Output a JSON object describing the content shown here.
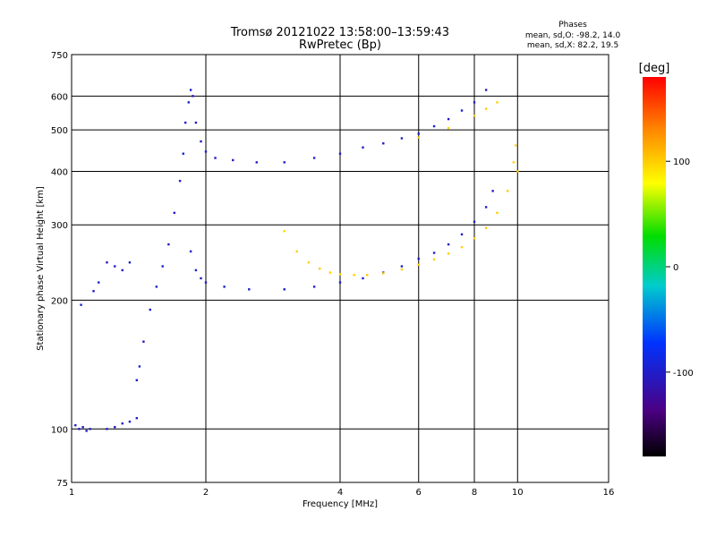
{
  "chart_data": {
    "type": "scatter",
    "title": "Tromsø 20121022 13:58:00–13:59:43",
    "subtitle": "RwPretec (Bp)",
    "xlabel": "Frequency [MHz]",
    "ylabel": "Stationary phase Virtual Height [km]",
    "x_scale": "log",
    "y_scale": "log",
    "xlim": [
      1,
      16
    ],
    "ylim": [
      75,
      750
    ],
    "x_ticks": [
      1,
      2,
      4,
      6,
      8,
      10,
      16
    ],
    "y_ticks": [
      75,
      100,
      200,
      300,
      400,
      500,
      600,
      750
    ],
    "grid": true,
    "stats": {
      "heading": "Phases",
      "line_o": "mean, sd,O: -98.2, 14.0",
      "line_x": "mean, sd,X: 82.2, 19.5"
    },
    "colorbar": {
      "label": "[deg]",
      "min": -180,
      "max": 180,
      "ticks": [
        100,
        0,
        -100
      ]
    },
    "series": [
      {
        "values": [
          [
            1.02,
            102,
            -100
          ],
          [
            1.04,
            100,
            -105
          ],
          [
            1.06,
            101,
            -98
          ],
          [
            1.08,
            99,
            -102
          ],
          [
            1.1,
            100,
            -100
          ],
          [
            1.2,
            100,
            -97
          ],
          [
            1.25,
            101,
            -103
          ],
          [
            1.3,
            103,
            -100
          ],
          [
            1.35,
            104,
            -98
          ],
          [
            1.4,
            106,
            -100
          ],
          [
            1.05,
            195,
            -95
          ],
          [
            1.12,
            210,
            -100
          ],
          [
            1.15,
            220,
            -98
          ],
          [
            1.2,
            245,
            -102
          ],
          [
            1.25,
            240,
            -100
          ],
          [
            1.3,
            235,
            -99
          ],
          [
            1.35,
            245,
            -101
          ],
          [
            1.4,
            130,
            -100
          ],
          [
            1.42,
            140,
            -98
          ],
          [
            1.45,
            160,
            -102
          ],
          [
            1.5,
            190,
            -100
          ],
          [
            1.55,
            215,
            -101
          ],
          [
            1.6,
            240,
            -97
          ],
          [
            1.65,
            270,
            -100
          ],
          [
            1.7,
            320,
            -103
          ],
          [
            1.75,
            380,
            -99
          ],
          [
            1.78,
            440,
            -100
          ],
          [
            1.8,
            520,
            -101
          ],
          [
            1.83,
            580,
            -98
          ],
          [
            1.85,
            620,
            -100
          ],
          [
            1.87,
            600,
            -102
          ],
          [
            1.9,
            520,
            -100
          ],
          [
            1.95,
            470,
            -100
          ],
          [
            2.0,
            445,
            -98
          ],
          [
            2.1,
            430,
            -102
          ],
          [
            2.3,
            425,
            -100
          ],
          [
            2.6,
            420,
            -101
          ],
          [
            3.0,
            420,
            -100
          ],
          [
            3.5,
            430,
            -99
          ],
          [
            4.0,
            440,
            -100
          ],
          [
            4.5,
            455,
            -101
          ],
          [
            5.0,
            465,
            -99
          ],
          [
            5.5,
            478,
            -100
          ],
          [
            6.0,
            490,
            -98
          ],
          [
            6.5,
            510,
            -100
          ],
          [
            7.0,
            530,
            -102
          ],
          [
            7.5,
            555,
            -100
          ],
          [
            8.0,
            580,
            -98
          ],
          [
            8.5,
            620,
            -100
          ],
          [
            1.85,
            260,
            -100
          ],
          [
            1.9,
            235,
            -98
          ],
          [
            1.95,
            225,
            -101
          ],
          [
            2.0,
            220,
            -100
          ],
          [
            2.2,
            215,
            -99
          ],
          [
            2.5,
            212,
            -100
          ],
          [
            3.0,
            212,
            -101
          ],
          [
            3.5,
            215,
            -100
          ],
          [
            4.0,
            220,
            -98
          ],
          [
            4.5,
            225,
            -100
          ],
          [
            5.0,
            232,
            -102
          ],
          [
            5.5,
            240,
            -100
          ],
          [
            6.0,
            250,
            -99
          ],
          [
            6.5,
            258,
            -100
          ],
          [
            7.0,
            270,
            -101
          ],
          [
            7.5,
            285,
            -100
          ],
          [
            8.0,
            305,
            -98
          ],
          [
            8.5,
            330,
            -100
          ],
          [
            8.8,
            360,
            -102
          ]
        ]
      },
      {
        "values": [
          [
            3.0,
            290,
            95
          ],
          [
            3.2,
            260,
            100
          ],
          [
            3.4,
            245,
            98
          ],
          [
            3.6,
            237,
            102
          ],
          [
            3.8,
            232,
            100
          ],
          [
            4.0,
            230,
            97
          ],
          [
            4.3,
            229,
            100
          ],
          [
            4.6,
            229,
            103
          ],
          [
            5.0,
            231,
            99
          ],
          [
            5.5,
            236,
            100
          ],
          [
            6.0,
            242,
            101
          ],
          [
            6.5,
            249,
            99
          ],
          [
            7.0,
            257,
            100
          ],
          [
            7.5,
            266,
            98
          ],
          [
            8.0,
            279,
            100
          ],
          [
            8.5,
            295,
            102
          ],
          [
            9.0,
            320,
            100
          ],
          [
            9.5,
            360,
            99
          ],
          [
            6.0,
            480,
            100
          ],
          [
            7.0,
            505,
            98
          ],
          [
            8.0,
            540,
            101
          ],
          [
            8.5,
            560,
            100
          ],
          [
            9.0,
            580,
            99
          ],
          [
            9.8,
            420,
            100
          ],
          [
            9.9,
            460,
            98
          ],
          [
            10.0,
            400,
            102
          ]
        ]
      }
    ]
  }
}
